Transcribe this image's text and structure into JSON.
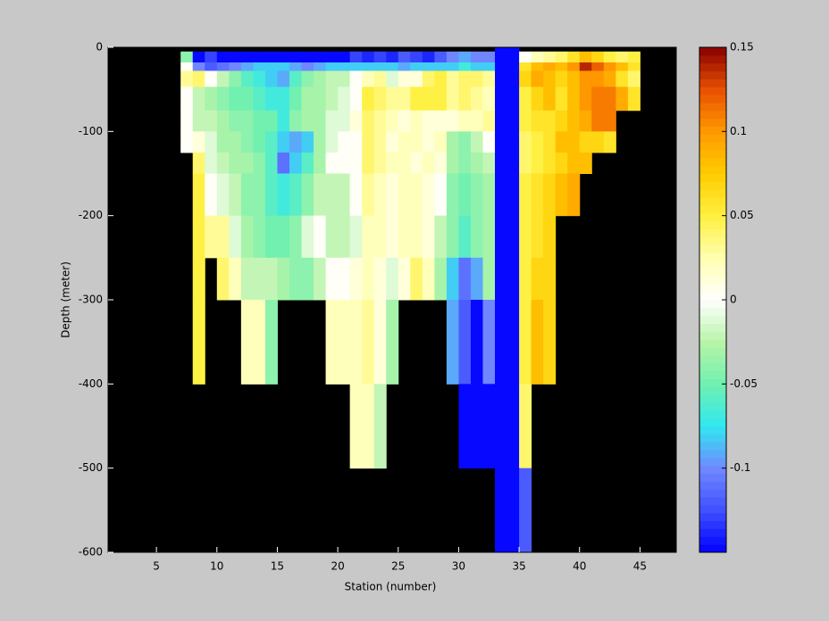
{
  "chart_data": {
    "type": "heatmap",
    "xlabel": "Station (number)",
    "ylabel": "Depth (meter)",
    "xlim": [
      1,
      48
    ],
    "xticks": [
      5,
      10,
      15,
      20,
      25,
      30,
      35,
      40,
      45
    ],
    "ylim": [
      -600,
      0
    ],
    "yticks": [
      -600,
      -500,
      -400,
      -300,
      -200,
      -100,
      0
    ],
    "x_edges": [
      7,
      8,
      9,
      10,
      11,
      12,
      13,
      14,
      15,
      16,
      17,
      18,
      19,
      20,
      21,
      22,
      23,
      24,
      25,
      26,
      27,
      28,
      29,
      30,
      31,
      32,
      33,
      34,
      35,
      36,
      37,
      38,
      39,
      40,
      41,
      42,
      43,
      44,
      45
    ],
    "y_edges": [
      0,
      -5,
      -18,
      -28,
      -47,
      -75,
      -100,
      -125,
      -150,
      -200,
      -250,
      -300,
      -400,
      -500,
      -600
    ],
    "clim": [
      -0.15,
      0.15
    ],
    "cticks": [
      -0.1,
      -0.05,
      0,
      0.05,
      0.1,
      0.15
    ],
    "colormap": [
      "#0000ff",
      "#4050ff",
      "#7088ff",
      "#30e8f0",
      "#70f0b0",
      "#b8f4a8",
      "#ffffff",
      "#ffffb0",
      "#fff040",
      "#ffcc00",
      "#ff9900",
      "#e85000",
      "#880000"
    ],
    "background": "#000000",
    "z": [
      [
        null,
        null,
        null,
        null,
        null,
        null,
        null,
        null,
        null,
        null,
        null,
        null,
        null,
        null,
        null,
        null,
        null,
        null,
        null,
        null,
        null,
        null,
        null,
        null,
        null,
        null,
        -0.15,
        -0.15,
        null,
        null,
        null,
        null,
        null,
        null,
        null,
        null,
        null,
        null
      ],
      [
        -0.04,
        -0.15,
        -0.13,
        -0.15,
        -0.15,
        -0.15,
        -0.15,
        -0.15,
        -0.15,
        -0.15,
        -0.15,
        -0.15,
        -0.15,
        -0.15,
        -0.13,
        -0.14,
        -0.13,
        -0.14,
        -0.12,
        -0.13,
        -0.14,
        -0.12,
        -0.1,
        -0.09,
        -0.1,
        -0.1,
        -0.15,
        -0.15,
        0.0,
        0.02,
        0.03,
        0.04,
        0.06,
        0.08,
        0.07,
        0.05,
        0.04,
        0.05
      ],
      [
        0.0,
        -0.1,
        -0.12,
        -0.11,
        -0.1,
        -0.09,
        -0.08,
        -0.08,
        -0.08,
        -0.09,
        -0.1,
        -0.09,
        -0.08,
        -0.08,
        -0.08,
        -0.08,
        -0.08,
        -0.08,
        -0.09,
        -0.08,
        -0.08,
        -0.08,
        -0.08,
        -0.07,
        -0.08,
        -0.08,
        -0.15,
        -0.15,
        0.06,
        0.08,
        0.09,
        0.08,
        0.1,
        0.14,
        0.12,
        0.1,
        0.08,
        0.06
      ],
      [
        0.03,
        0.04,
        0.0,
        -0.02,
        -0.04,
        -0.06,
        -0.07,
        -0.08,
        -0.09,
        -0.06,
        -0.04,
        -0.03,
        -0.02,
        -0.02,
        0.0,
        0.02,
        0.03,
        -0.01,
        0.01,
        0.01,
        0.04,
        0.05,
        0.03,
        0.04,
        0.04,
        0.03,
        -0.15,
        -0.15,
        0.07,
        0.09,
        0.08,
        0.07,
        0.08,
        0.1,
        0.1,
        0.09,
        0.06,
        0.04
      ],
      [
        0.0,
        -0.02,
        -0.03,
        -0.04,
        -0.05,
        -0.05,
        -0.06,
        -0.07,
        -0.07,
        -0.05,
        -0.03,
        -0.03,
        -0.02,
        -0.01,
        0.0,
        0.05,
        0.04,
        0.03,
        0.03,
        0.05,
        0.05,
        0.05,
        0.03,
        0.04,
        0.03,
        0.02,
        -0.15,
        -0.15,
        0.05,
        0.07,
        0.08,
        0.06,
        0.08,
        0.1,
        0.11,
        0.11,
        0.09,
        0.06
      ],
      [
        0.0,
        -0.02,
        -0.02,
        -0.03,
        -0.04,
        -0.04,
        -0.05,
        -0.05,
        -0.07,
        -0.04,
        -0.03,
        -0.03,
        -0.01,
        -0.01,
        0.01,
        0.04,
        0.03,
        0.02,
        0.01,
        0.02,
        0.01,
        0.01,
        0.01,
        0.02,
        0.02,
        0.03,
        -0.15,
        -0.15,
        0.05,
        0.06,
        0.06,
        0.07,
        0.08,
        0.09,
        0.11,
        0.11,
        null,
        null
      ],
      [
        0.0,
        0.01,
        -0.01,
        -0.03,
        -0.03,
        -0.04,
        -0.05,
        -0.06,
        -0.08,
        -0.09,
        -0.08,
        -0.03,
        -0.01,
        0.0,
        0.0,
        0.04,
        0.03,
        0.01,
        0.02,
        0.02,
        0.01,
        0.02,
        -0.03,
        -0.04,
        -0.02,
        0.0,
        -0.15,
        -0.15,
        0.04,
        0.05,
        0.06,
        0.08,
        0.08,
        0.07,
        0.07,
        0.06,
        null,
        null
      ],
      [
        null,
        0.04,
        -0.01,
        -0.02,
        -0.03,
        -0.03,
        -0.04,
        -0.06,
        -0.11,
        -0.08,
        -0.06,
        -0.03,
        0.0,
        0.0,
        0.0,
        0.04,
        0.03,
        0.02,
        0.02,
        0.01,
        0.02,
        0.01,
        -0.03,
        -0.04,
        -0.03,
        -0.02,
        -0.15,
        -0.15,
        0.04,
        0.05,
        0.06,
        0.07,
        0.08,
        0.08,
        null,
        null,
        null,
        null
      ],
      [
        null,
        0.05,
        0.0,
        -0.01,
        -0.02,
        -0.04,
        -0.04,
        -0.06,
        -0.07,
        -0.06,
        -0.04,
        -0.02,
        -0.02,
        -0.02,
        0.0,
        0.03,
        0.02,
        0.01,
        0.02,
        0.02,
        0.01,
        0.0,
        -0.04,
        -0.05,
        -0.04,
        -0.03,
        -0.15,
        -0.15,
        0.05,
        0.06,
        0.07,
        0.08,
        0.09,
        null,
        null,
        null,
        null,
        null
      ],
      [
        null,
        0.05,
        0.03,
        0.03,
        -0.01,
        -0.03,
        -0.04,
        -0.05,
        -0.05,
        -0.04,
        -0.01,
        0.0,
        -0.02,
        -0.02,
        -0.01,
        0.02,
        0.02,
        0.01,
        0.02,
        0.02,
        0.01,
        -0.02,
        -0.04,
        -0.06,
        -0.04,
        -0.03,
        -0.15,
        -0.15,
        0.05,
        0.06,
        0.07,
        null,
        null,
        null,
        null,
        null,
        null,
        null
      ],
      [
        null,
        0.05,
        null,
        0.04,
        0.02,
        -0.02,
        -0.02,
        -0.02,
        -0.03,
        -0.04,
        -0.04,
        -0.02,
        0.0,
        0.0,
        0.01,
        0.02,
        0.01,
        -0.01,
        0.01,
        0.04,
        0.02,
        -0.03,
        -0.08,
        -0.11,
        -0.09,
        -0.03,
        -0.15,
        -0.15,
        0.05,
        0.07,
        0.07,
        null,
        null,
        null,
        null,
        null,
        null,
        null
      ],
      [
        null,
        0.05,
        null,
        null,
        null,
        0.02,
        0.02,
        -0.04,
        null,
        null,
        null,
        null,
        0.02,
        0.02,
        0.02,
        0.03,
        0.01,
        -0.03,
        null,
        null,
        null,
        null,
        -0.09,
        -0.12,
        -0.15,
        -0.1,
        -0.15,
        -0.15,
        0.05,
        0.08,
        0.07,
        null,
        null,
        null,
        null,
        null,
        null,
        null
      ],
      [
        null,
        null,
        null,
        null,
        null,
        null,
        null,
        null,
        null,
        null,
        null,
        null,
        null,
        null,
        0.02,
        0.02,
        -0.02,
        null,
        null,
        null,
        null,
        null,
        null,
        -0.15,
        -0.15,
        -0.15,
        -0.15,
        -0.15,
        0.04,
        null,
        null,
        null,
        null,
        null,
        null,
        null,
        null,
        null
      ],
      [
        null,
        null,
        null,
        null,
        null,
        null,
        null,
        null,
        null,
        null,
        null,
        null,
        null,
        null,
        null,
        null,
        null,
        null,
        null,
        null,
        null,
        null,
        null,
        null,
        null,
        null,
        -0.15,
        -0.15,
        -0.12,
        null,
        null,
        null,
        null,
        null,
        null,
        null,
        null,
        null
      ]
    ]
  }
}
